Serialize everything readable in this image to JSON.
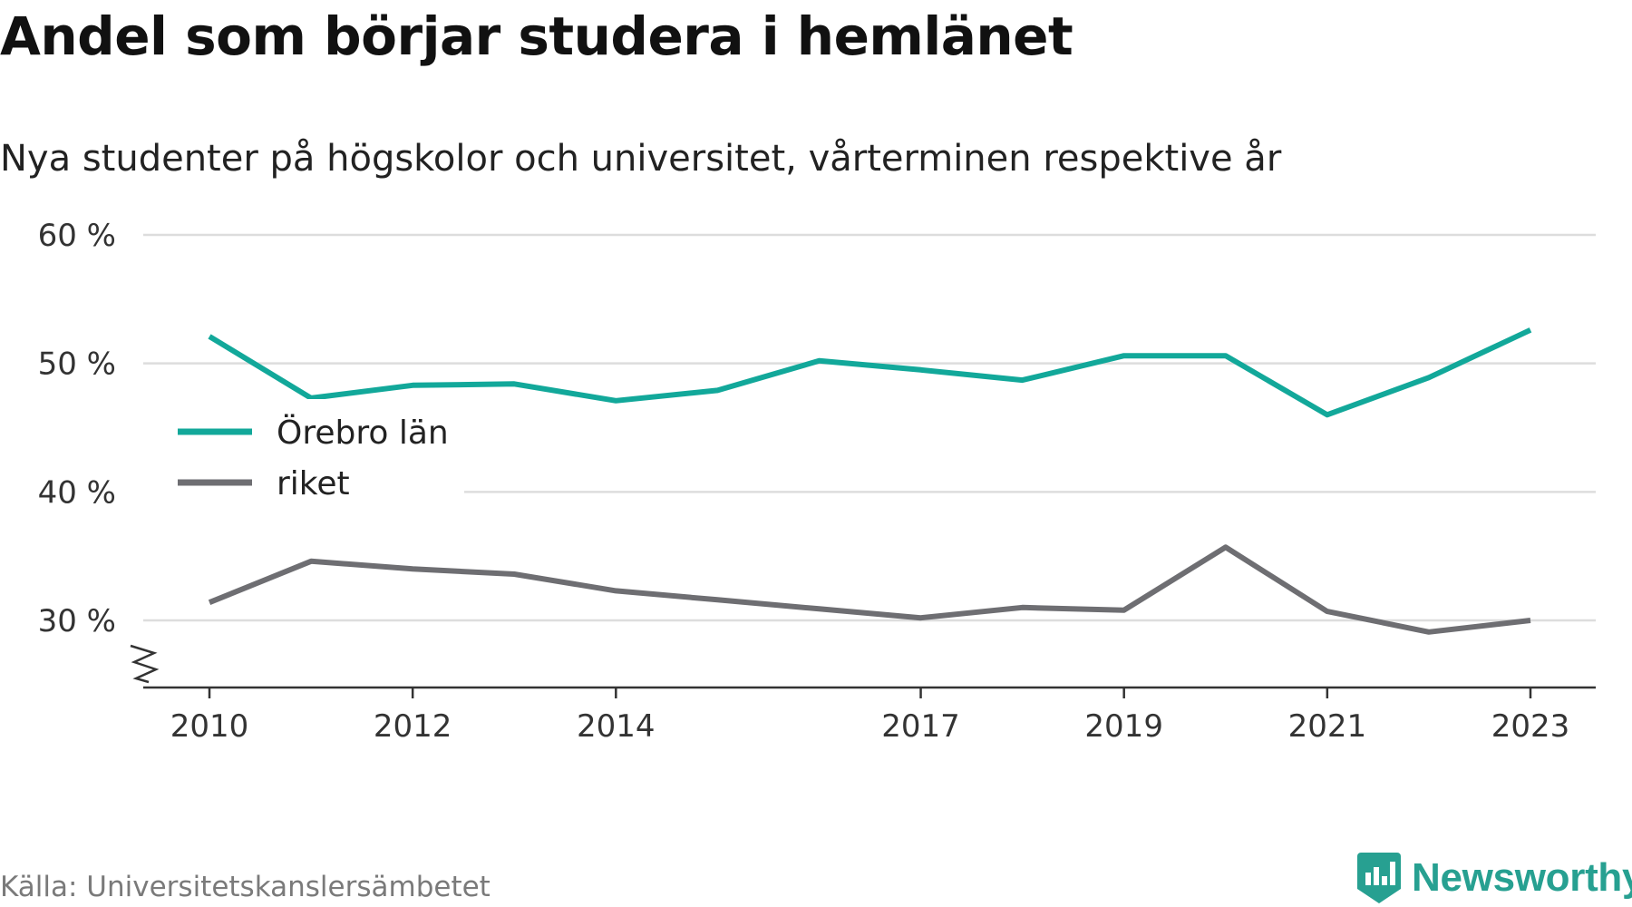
{
  "header": {
    "title": "Andel som börjar studera i hemlänet",
    "subtitle": "Nya studenter på högskolor och universitet, vårterminen respektive år"
  },
  "footer": {
    "source": "Källa: Universitetskanslersämbetet",
    "brand": "Newsworthy"
  },
  "colors": {
    "orebro": "#12a89a",
    "riket": "#6e6e72",
    "grid": "#dddddd",
    "axis": "#333333",
    "brand": "#27a091"
  },
  "chart_data": {
    "type": "line",
    "title": "Andel som börjar studera i hemlänet",
    "subtitle": "Nya studenter på högskolor och universitet, vårterminen respektive år",
    "xlabel": "",
    "ylabel": "",
    "x": [
      2010,
      2011,
      2012,
      2013,
      2014,
      2015,
      2016,
      2017,
      2018,
      2019,
      2020,
      2021,
      2022,
      2023
    ],
    "x_ticks": [
      2010,
      2012,
      2014,
      2017,
      2019,
      2021,
      2023
    ],
    "x_tick_labels": [
      "2010",
      "2012",
      "2014",
      "2017",
      "2019",
      "2021",
      "2023"
    ],
    "y_ticks": [
      30,
      40,
      50,
      60
    ],
    "y_tick_labels": [
      "30 %",
      "40 %",
      "50 %",
      "60 %"
    ],
    "ylim": [
      25,
      60
    ],
    "y_axis_break": true,
    "grid": true,
    "legend_position": "left",
    "series": [
      {
        "name": "Örebro län",
        "color": "#12a89a",
        "values": [
          52.1,
          47.3,
          48.3,
          48.4,
          47.1,
          47.9,
          50.2,
          49.5,
          48.7,
          50.6,
          50.6,
          46.0,
          48.9,
          52.6
        ]
      },
      {
        "name": "riket",
        "color": "#6e6e72",
        "values": [
          31.4,
          34.6,
          34.0,
          33.6,
          32.3,
          31.6,
          30.9,
          30.2,
          31.0,
          30.8,
          35.7,
          30.7,
          29.1,
          30.0
        ]
      }
    ]
  }
}
